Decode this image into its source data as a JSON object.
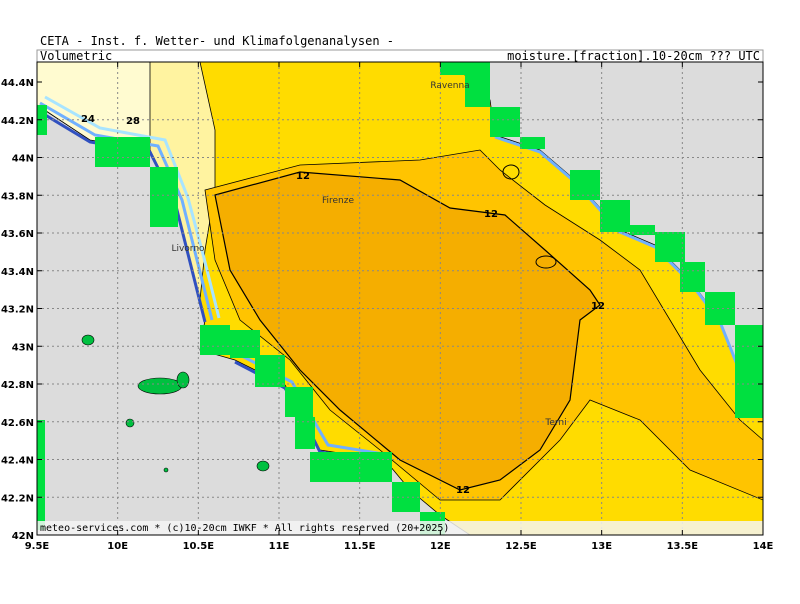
{
  "header": {
    "title": "CETA - Inst. f. Wetter- und Klimafolgenanalysen -",
    "left": "Volumetric",
    "right": "moisture.[fraction].10-20cm ??? UTC"
  },
  "map": {
    "lat_labels": [
      "44.4N",
      "44.2N",
      "44N",
      "43.8N",
      "43.6N",
      "43.4N",
      "43.2N",
      "43N",
      "42.8N",
      "42.6N",
      "42.4N",
      "42.2N",
      "42N"
    ],
    "lon_labels": [
      "9.5E",
      "10E",
      "10.5E",
      "11E",
      "11.5E",
      "12E",
      "12.5E",
      "13E",
      "13.5E",
      "14E"
    ],
    "contour_labels": [
      "24",
      "28",
      "12",
      "12",
      "12",
      "12"
    ],
    "places": [
      "Ravenna",
      "Firenze",
      "Livorno",
      "Terni"
    ]
  },
  "footer": "meteo-services.com * (c)10-20cm IWKF * All rights reserved (20+2025)"
}
